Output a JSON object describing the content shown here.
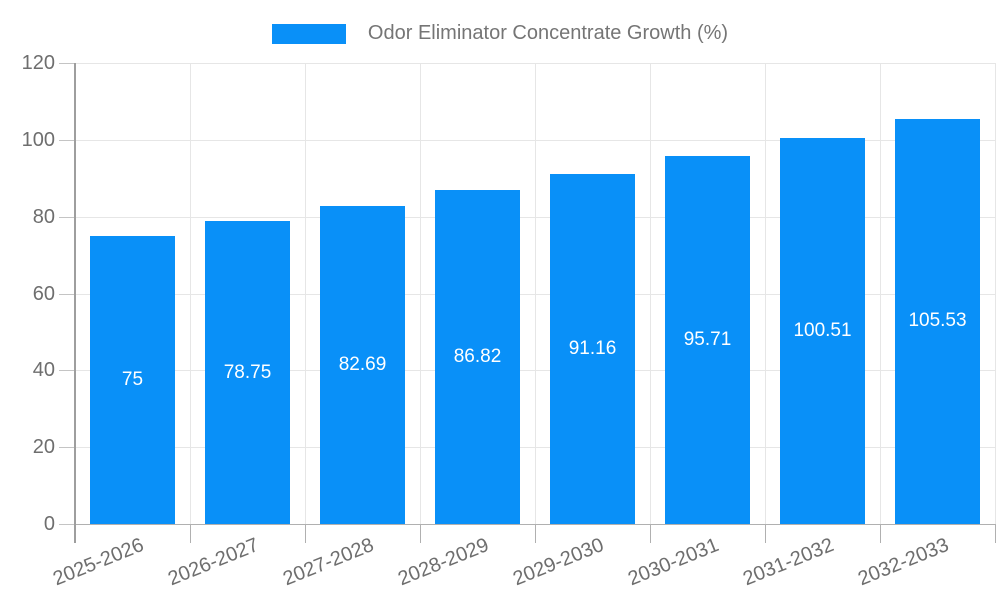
{
  "chart_data": {
    "type": "bar",
    "legend": {
      "label": "Odor Eliminator Concentrate Growth (%)",
      "position": "top"
    },
    "categories": [
      "2025-2026",
      "2026-2027",
      "2027-2028",
      "2028-2029",
      "2029-2030",
      "2030-2031",
      "2031-2032",
      "2032-2033"
    ],
    "values": [
      75,
      78.75,
      82.69,
      86.82,
      91.16,
      95.71,
      100.51,
      105.53
    ],
    "value_labels": [
      "75",
      "78.75",
      "82.69",
      "86.82",
      "91.16",
      "95.71",
      "100.51",
      "105.53"
    ],
    "ylabel": "",
    "xlabel": "",
    "ylim": [
      0,
      120
    ],
    "yticks": [
      0,
      20,
      40,
      60,
      80,
      100,
      120
    ],
    "grid": true,
    "colors": {
      "bar": "#0990f8",
      "grid": "#e6e6e6",
      "baseline": "#b0b0b0",
      "axis": "#9e9e9e",
      "axis_text": "#6e6e6e",
      "legend_text": "#757575",
      "value_label_text": "#ffffff"
    }
  }
}
